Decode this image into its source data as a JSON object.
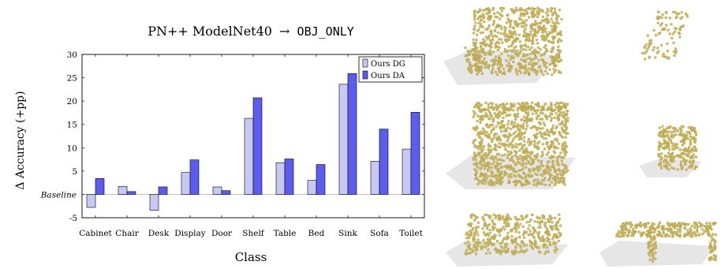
{
  "chart_data": {
    "type": "bar",
    "title_prefix": "PN++ ModelNet40",
    "title_arrow": "→",
    "title_suffix": "OBJ_ONLY",
    "xlabel": "Class",
    "ylabel": "Δ Accuracy (+pp)",
    "baseline_label": "Baseline",
    "categories": [
      "Cabinet",
      "Chair",
      "Desk",
      "Display",
      "Door",
      "Shelf",
      "Table",
      "Bed",
      "Sink",
      "Sofa",
      "Toilet"
    ],
    "series": [
      {
        "name": "Ours DG",
        "color": "#c8c8f5",
        "values": [
          -2.8,
          1.7,
          -3.4,
          4.7,
          1.6,
          16.3,
          6.8,
          3.0,
          23.6,
          7.1,
          9.7
        ]
      },
      {
        "name": "Ours DA",
        "color": "#5c5cf0",
        "values": [
          3.4,
          0.6,
          1.6,
          7.4,
          0.8,
          20.7,
          7.6,
          6.4,
          25.9,
          14.0,
          17.6
        ]
      }
    ],
    "ylim": [
      -5,
      30
    ],
    "yticks": [
      -5,
      0,
      5,
      10,
      15,
      20,
      25,
      30
    ],
    "legend_position": "top-right",
    "grid": false
  },
  "point_cloud_panels": [
    {
      "icon": "bookshelf-point-cloud",
      "color": "#d4c060"
    },
    {
      "icon": "sparse-point-cloud",
      "color": "#d4c060"
    },
    {
      "icon": "cabinet-box-point-cloud",
      "color": "#d4c060"
    },
    {
      "icon": "small-cabinet-point-cloud",
      "color": "#d4c060"
    },
    {
      "icon": "low-box-point-cloud",
      "color": "#d4c060"
    },
    {
      "icon": "table-point-cloud",
      "color": "#d4c060"
    }
  ]
}
